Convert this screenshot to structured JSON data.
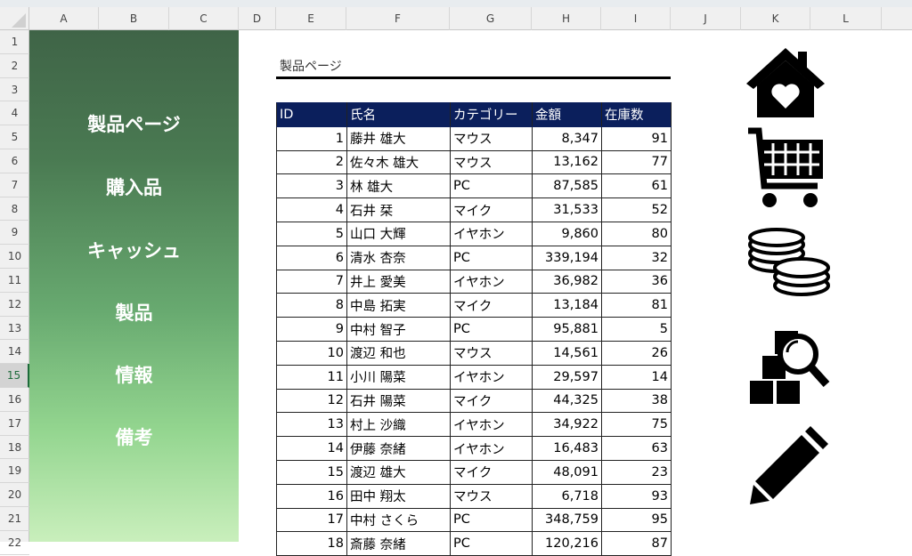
{
  "columns": [
    "A",
    "B",
    "C",
    "D",
    "E",
    "F",
    "G",
    "H",
    "I",
    "J",
    "K",
    "L"
  ],
  "rows": [
    "1",
    "2",
    "3",
    "4",
    "5",
    "6",
    "7",
    "8",
    "9",
    "10",
    "11",
    "12",
    "13",
    "14",
    "15",
    "16",
    "17",
    "18",
    "19",
    "20",
    "21",
    "22"
  ],
  "selected_row": "15",
  "sidebar": {
    "items": [
      {
        "label": "製品ページ"
      },
      {
        "label": "購入品"
      },
      {
        "label": "キャッシュ"
      },
      {
        "label": "製品"
      },
      {
        "label": "情報"
      },
      {
        "label": "備考"
      }
    ]
  },
  "page_title": "製品ページ",
  "table": {
    "headers": [
      "ID",
      "氏名",
      "カテゴリー",
      "金額",
      "在庫数"
    ],
    "rows": [
      [
        "1",
        "藤井 雄大",
        "マウス",
        "8,347",
        "91"
      ],
      [
        "2",
        "佐々木 雄大",
        "マウス",
        "13,162",
        "77"
      ],
      [
        "3",
        "林 雄大",
        "PC",
        "87,585",
        "61"
      ],
      [
        "4",
        "石井 栞",
        "マイク",
        "31,533",
        "52"
      ],
      [
        "5",
        "山口 大輝",
        "イヤホン",
        "9,860",
        "80"
      ],
      [
        "6",
        "清水 杏奈",
        "PC",
        "339,194",
        "32"
      ],
      [
        "7",
        "井上 愛美",
        "イヤホン",
        "36,982",
        "36"
      ],
      [
        "8",
        "中島 拓実",
        "マイク",
        "13,184",
        "81"
      ],
      [
        "9",
        "中村 智子",
        "PC",
        "95,881",
        "5"
      ],
      [
        "10",
        "渡辺 和也",
        "マウス",
        "14,561",
        "26"
      ],
      [
        "11",
        "小川 陽菜",
        "イヤホン",
        "29,597",
        "14"
      ],
      [
        "12",
        "石井 陽菜",
        "マイク",
        "44,325",
        "38"
      ],
      [
        "13",
        "村上 沙織",
        "イヤホン",
        "34,922",
        "75"
      ],
      [
        "14",
        "伊藤 奈緒",
        "イヤホン",
        "16,483",
        "63"
      ],
      [
        "15",
        "渡辺 雄大",
        "マイク",
        "48,091",
        "23"
      ],
      [
        "16",
        "田中 翔太",
        "マウス",
        "6,718",
        "93"
      ],
      [
        "17",
        "中村 さくら",
        "PC",
        "348,759",
        "95"
      ],
      [
        "18",
        "斎藤 奈緒",
        "PC",
        "120,216",
        "87"
      ]
    ]
  },
  "icons": [
    "home-heart-icon",
    "shopping-cart-icon",
    "coins-icon",
    "inventory-search-icon",
    "pencil-icon"
  ],
  "colors": {
    "header_bg": "#0b1f5c",
    "sidebar_top": "#3f6447",
    "sidebar_bottom": "#c9efbc"
  }
}
